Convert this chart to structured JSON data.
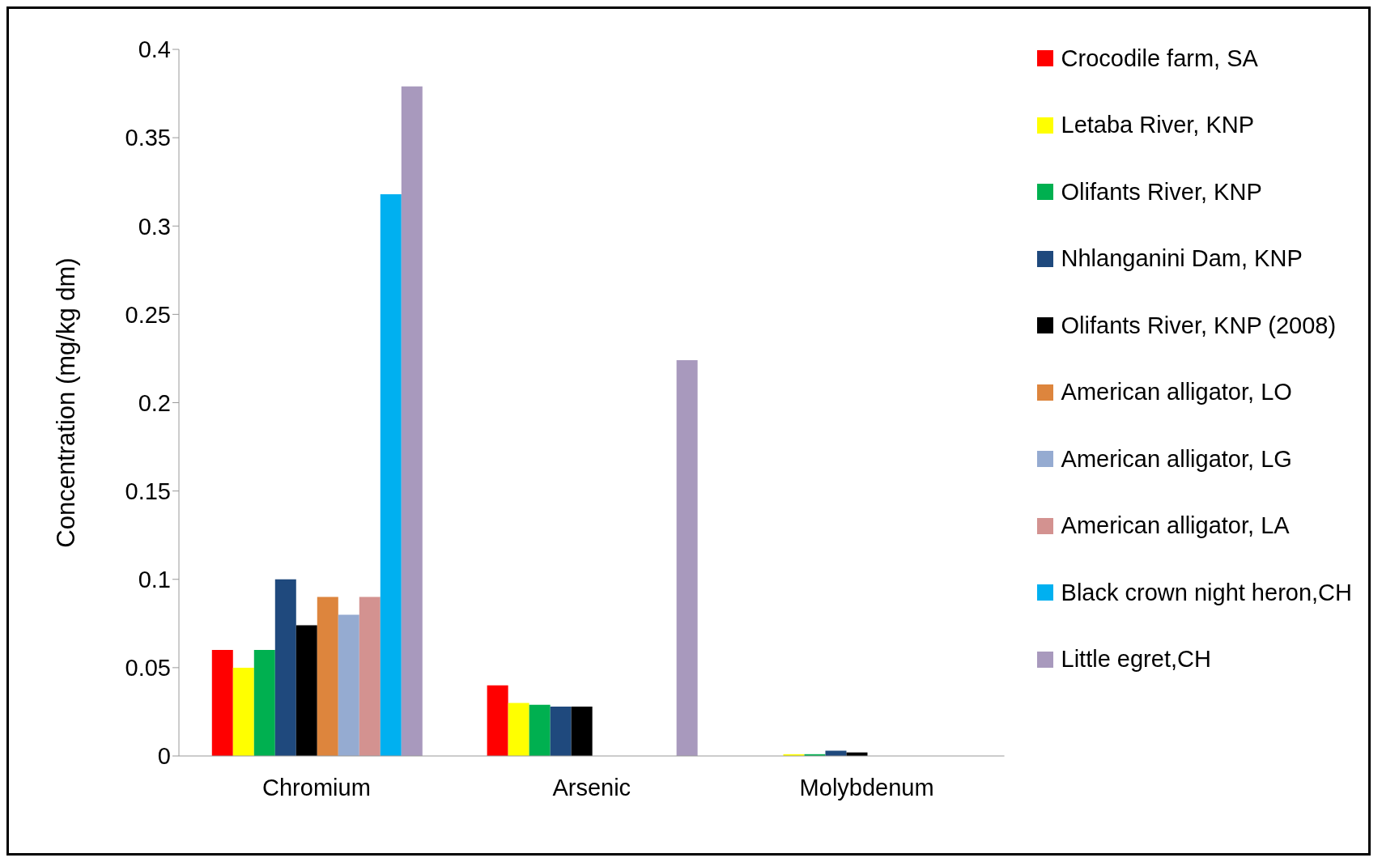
{
  "chart_data": {
    "type": "bar",
    "ylabel": "Concentration (mg/kg dm)",
    "categories": [
      "Chromium",
      "Arsenic",
      "Molybdenum"
    ],
    "ylim": [
      0,
      0.4
    ],
    "yticks": [
      0,
      0.05,
      0.1,
      0.15,
      0.2,
      0.25,
      0.3,
      0.35,
      0.4
    ],
    "grid": false,
    "legend": "right",
    "series": [
      {
        "name": "Crocodile farm, SA",
        "color": "#ff0000",
        "values": [
          0.06,
          0.04,
          null
        ]
      },
      {
        "name": "Letaba River, KNP",
        "color": "#ffff00",
        "values": [
          0.05,
          0.03,
          0.001
        ]
      },
      {
        "name": "Olifants River, KNP",
        "color": "#00b050",
        "values": [
          0.06,
          0.029,
          0.001
        ]
      },
      {
        "name": "Nhlanganini Dam, KNP",
        "color": "#1f497d",
        "values": [
          0.1,
          0.028,
          0.003
        ]
      },
      {
        "name": "Olifants River, KNP (2008)",
        "color": "#000000",
        "values": [
          0.074,
          0.028,
          0.002
        ]
      },
      {
        "name": "American alligator, LO",
        "color": "#dd853d",
        "values": [
          0.09,
          null,
          null
        ]
      },
      {
        "name": "American alligator, LG",
        "color": "#95abd1",
        "values": [
          0.08,
          null,
          null
        ]
      },
      {
        "name": "American alligator, LA",
        "color": "#d39290",
        "values": [
          0.09,
          null,
          null
        ]
      },
      {
        "name": "Black crown night heron,CH",
        "color": "#00b0f0",
        "values": [
          0.318,
          null,
          null
        ]
      },
      {
        "name": "Little egret,CH",
        "color": "#a899bd",
        "values": [
          0.379,
          0.224,
          null
        ]
      }
    ]
  }
}
